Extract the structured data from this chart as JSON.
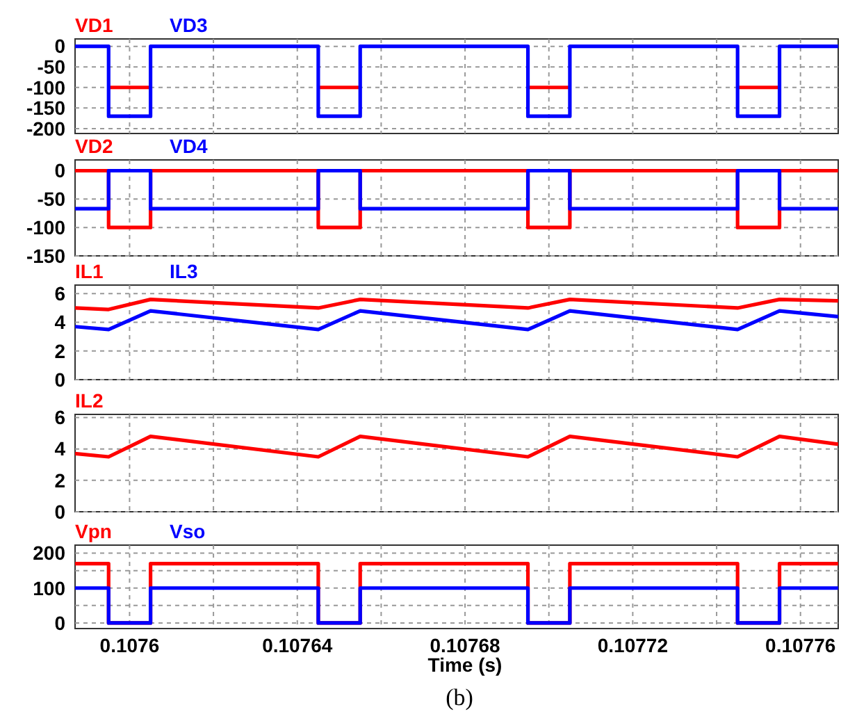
{
  "chart_data": [
    {
      "type": "line",
      "xlim": [
        0.107587,
        0.107769
      ],
      "xticks": [
        0.1076,
        {
          "value": 0.10762,
          "label": null
        },
        0.10764,
        {
          "value": 0.10766,
          "label": null
        },
        0.10768,
        {
          "value": 0.1077,
          "label": null
        },
        0.10772,
        {
          "value": 0.10774,
          "label": null
        },
        0.10776
      ],
      "ylim": [
        -212,
        18
      ],
      "yticks": [
        0,
        -50,
        -100,
        -150,
        -200
      ],
      "grid": true,
      "legend": "top left",
      "tick_labels": "y",
      "line_style": "solid",
      "x": [
        0.107587,
        0.107595,
        0.107595,
        0.107605,
        0.107605,
        0.107645,
        0.107645,
        0.107655,
        0.107655,
        0.107695,
        0.107695,
        0.107705,
        0.107705,
        0.107745,
        0.107745,
        0.107755,
        0.107755,
        0.107769
      ],
      "series": [
        {
          "name": "VD1",
          "color": "#ff0000",
          "values": [
            null,
            null,
            -100,
            -100,
            null,
            null,
            -100,
            -100,
            null,
            null,
            -100,
            -100,
            null,
            null,
            -100,
            -100,
            null,
            null
          ]
        },
        {
          "name": "VD3",
          "color": "#0000ff",
          "values": [
            0,
            0,
            -170,
            -170,
            0,
            0,
            -170,
            -170,
            0,
            0,
            -170,
            -170,
            0,
            0,
            -170,
            -170,
            0,
            0
          ]
        }
      ]
    },
    {
      "type": "line",
      "xlim": [
        0.107587,
        0.107769
      ],
      "xticks": [
        0.1076,
        {
          "value": 0.10762,
          "label": null
        },
        0.10764,
        {
          "value": 0.10766,
          "label": null
        },
        0.10768,
        {
          "value": 0.1077,
          "label": null
        },
        0.10772,
        {
          "value": 0.10774,
          "label": null
        },
        0.10776
      ],
      "ylim": [
        -150,
        19
      ],
      "yticks": [
        0,
        -50,
        -100,
        -150
      ],
      "grid": true,
      "legend": "top left",
      "tick_labels": "y",
      "line_style": "solid",
      "x": [
        0.107587,
        0.107595,
        0.107595,
        0.107605,
        0.107605,
        0.107645,
        0.107645,
        0.107655,
        0.107655,
        0.107695,
        0.107695,
        0.107705,
        0.107705,
        0.107745,
        0.107745,
        0.107755,
        0.107755,
        0.107769
      ],
      "series": [
        {
          "name": "VD2",
          "color": "#ff0000",
          "values": [
            0,
            0,
            -100,
            -100,
            0,
            0,
            -100,
            -100,
            0,
            0,
            -100,
            -100,
            0,
            0,
            -100,
            -100,
            0,
            0
          ]
        },
        {
          "name": "VD4",
          "color": "#0000ff",
          "values": [
            -67,
            -67,
            0,
            0,
            -67,
            -67,
            0,
            0,
            -67,
            -67,
            0,
            0,
            -67,
            -67,
            0,
            0,
            -67,
            -67
          ]
        }
      ]
    },
    {
      "type": "line",
      "xlim": [
        0.107587,
        0.107769
      ],
      "xticks": [
        0.1076,
        {
          "value": 0.10762,
          "label": null
        },
        0.10764,
        {
          "value": 0.10766,
          "label": null
        },
        0.10768,
        {
          "value": 0.1077,
          "label": null
        },
        0.10772,
        {
          "value": 0.10774,
          "label": null
        },
        0.10776
      ],
      "ylim": [
        0,
        6.6
      ],
      "yticks": [
        0,
        2,
        4,
        6
      ],
      "grid": true,
      "legend": "top left",
      "tick_labels": "y",
      "line_style": "solid",
      "x": [
        0.107587,
        0.107595,
        0.107605,
        0.107645,
        0.107655,
        0.107695,
        0.107705,
        0.107745,
        0.107755,
        0.107769
      ],
      "series": [
        {
          "name": "IL1",
          "color": "#ff0000",
          "values": [
            5.0,
            4.9,
            5.6,
            5.0,
            5.6,
            5.0,
            5.6,
            5.0,
            5.6,
            5.5
          ]
        },
        {
          "name": "IL3",
          "color": "#0000ff",
          "values": [
            3.7,
            3.5,
            4.8,
            3.5,
            4.8,
            3.5,
            4.8,
            3.5,
            4.8,
            4.4
          ]
        }
      ]
    },
    {
      "type": "line",
      "xlim": [
        0.107587,
        0.107769
      ],
      "xticks": [
        0.1076,
        {
          "value": 0.10762,
          "label": null
        },
        0.10764,
        {
          "value": 0.10766,
          "label": null
        },
        0.10768,
        {
          "value": 0.1077,
          "label": null
        },
        0.10772,
        {
          "value": 0.10774,
          "label": null
        },
        0.10776
      ],
      "ylim": [
        0,
        6.2
      ],
      "yticks": [
        0,
        2,
        4,
        6
      ],
      "grid": true,
      "legend": "top left",
      "tick_labels": "y",
      "line_style": "solid",
      "x": [
        0.107587,
        0.107595,
        0.107605,
        0.107645,
        0.107655,
        0.107695,
        0.107705,
        0.107745,
        0.107755,
        0.107769
      ],
      "series": [
        {
          "name": "IL2",
          "color": "#ff0000",
          "values": [
            3.7,
            3.5,
            4.8,
            3.5,
            4.8,
            3.5,
            4.8,
            3.5,
            4.8,
            4.3
          ]
        }
      ]
    },
    {
      "type": "line",
      "xlim": [
        0.107587,
        0.107769
      ],
      "xticks": [
        0.1076,
        {
          "value": 0.10762,
          "label": null
        },
        0.10764,
        {
          "value": 0.10766,
          "label": null
        },
        0.10768,
        {
          "value": 0.1077,
          "label": null
        },
        0.10772,
        {
          "value": 0.10774,
          "label": null
        },
        0.10776
      ],
      "ylim": [
        -16,
        223
      ],
      "yticks": [
        0,
        {
          "value": 50,
          "label": null
        },
        100,
        {
          "value": 150,
          "label": null
        },
        200
      ],
      "grid": true,
      "legend": "top left",
      "line_style": "solid",
      "xlabel": "Time (s)",
      "annotations": [
        "(b)"
      ],
      "x": [
        0.107587,
        0.107595,
        0.107595,
        0.107605,
        0.107605,
        0.107645,
        0.107645,
        0.107655,
        0.107655,
        0.107695,
        0.107695,
        0.107705,
        0.107705,
        0.107745,
        0.107745,
        0.107755,
        0.107755,
        0.107769
      ],
      "series": [
        {
          "name": "Vpn",
          "color": "#ff0000",
          "values": [
            170,
            170,
            0,
            0,
            170,
            170,
            0,
            0,
            170,
            170,
            0,
            0,
            170,
            170,
            0,
            0,
            170,
            170
          ]
        },
        {
          "name": "Vso",
          "color": "#0000ff",
          "values": [
            100,
            100,
            0,
            0,
            100,
            100,
            0,
            0,
            100,
            100,
            0,
            0,
            100,
            100,
            0,
            0,
            100,
            100
          ]
        }
      ]
    }
  ]
}
